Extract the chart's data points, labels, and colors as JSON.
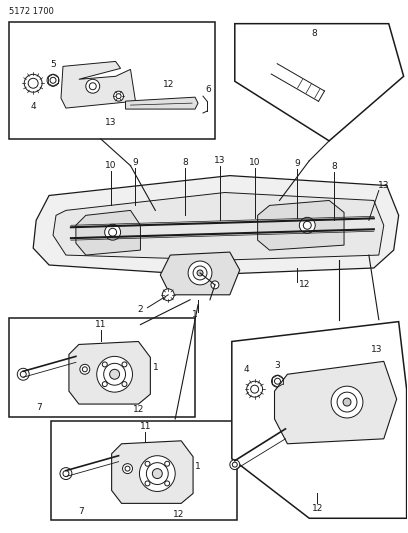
{
  "title_code": "5172 1700",
  "bg_color": "#ffffff",
  "line_color": "#1a1a1a",
  "fig_width": 4.08,
  "fig_height": 5.33,
  "dpi": 100,
  "label_fontsize": 6.5,
  "code_fontsize": 6.0
}
